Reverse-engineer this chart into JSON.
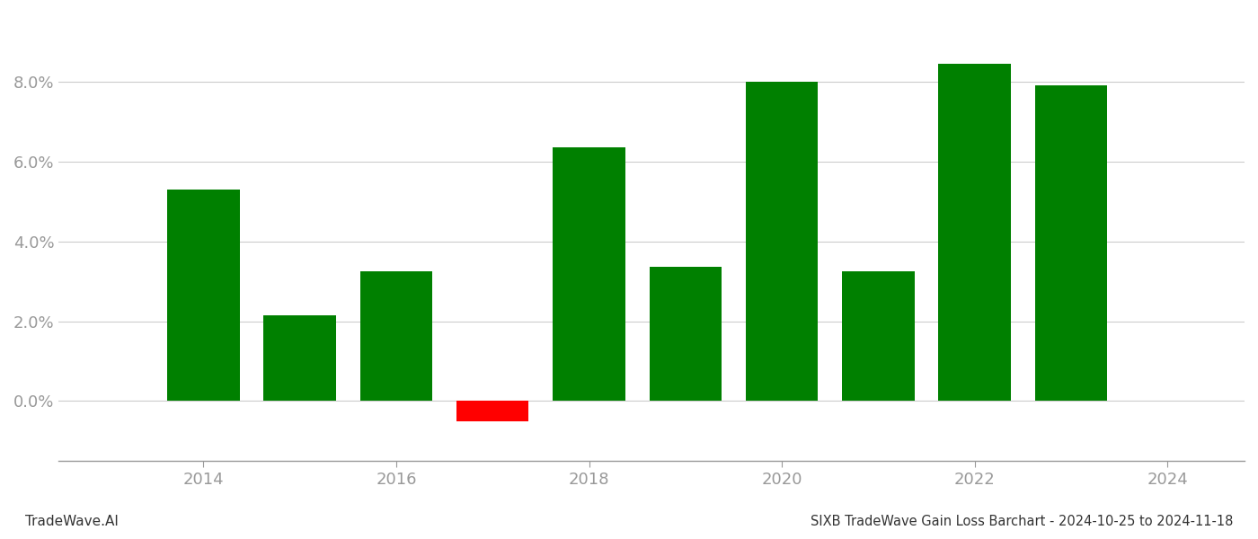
{
  "years": [
    2014,
    2015,
    2016,
    2017,
    2018,
    2019,
    2020,
    2021,
    2022,
    2023
  ],
  "values": [
    0.053,
    0.0215,
    0.0325,
    -0.005,
    0.0635,
    0.0335,
    0.08,
    0.0325,
    0.0845,
    0.079
  ],
  "colors": [
    "#008000",
    "#008000",
    "#008000",
    "#ff0000",
    "#008000",
    "#008000",
    "#008000",
    "#008000",
    "#008000",
    "#008000"
  ],
  "title": "SIXB TradeWave Gain Loss Barchart - 2024-10-25 to 2024-11-18",
  "watermark": "TradeWave.AI",
  "ylim_min": -0.015,
  "ylim_max": 0.097,
  "xlim_min": 2012.5,
  "xlim_max": 2024.8,
  "bar_width": 0.75,
  "grid_color": "#cccccc",
  "axis_color": "#999999",
  "background_color": "#ffffff",
  "title_fontsize": 10.5,
  "watermark_fontsize": 11,
  "tick_fontsize": 13,
  "yticks": [
    0.0,
    0.02,
    0.04,
    0.06,
    0.08
  ],
  "xticks": [
    2014,
    2016,
    2018,
    2020,
    2022,
    2024
  ]
}
